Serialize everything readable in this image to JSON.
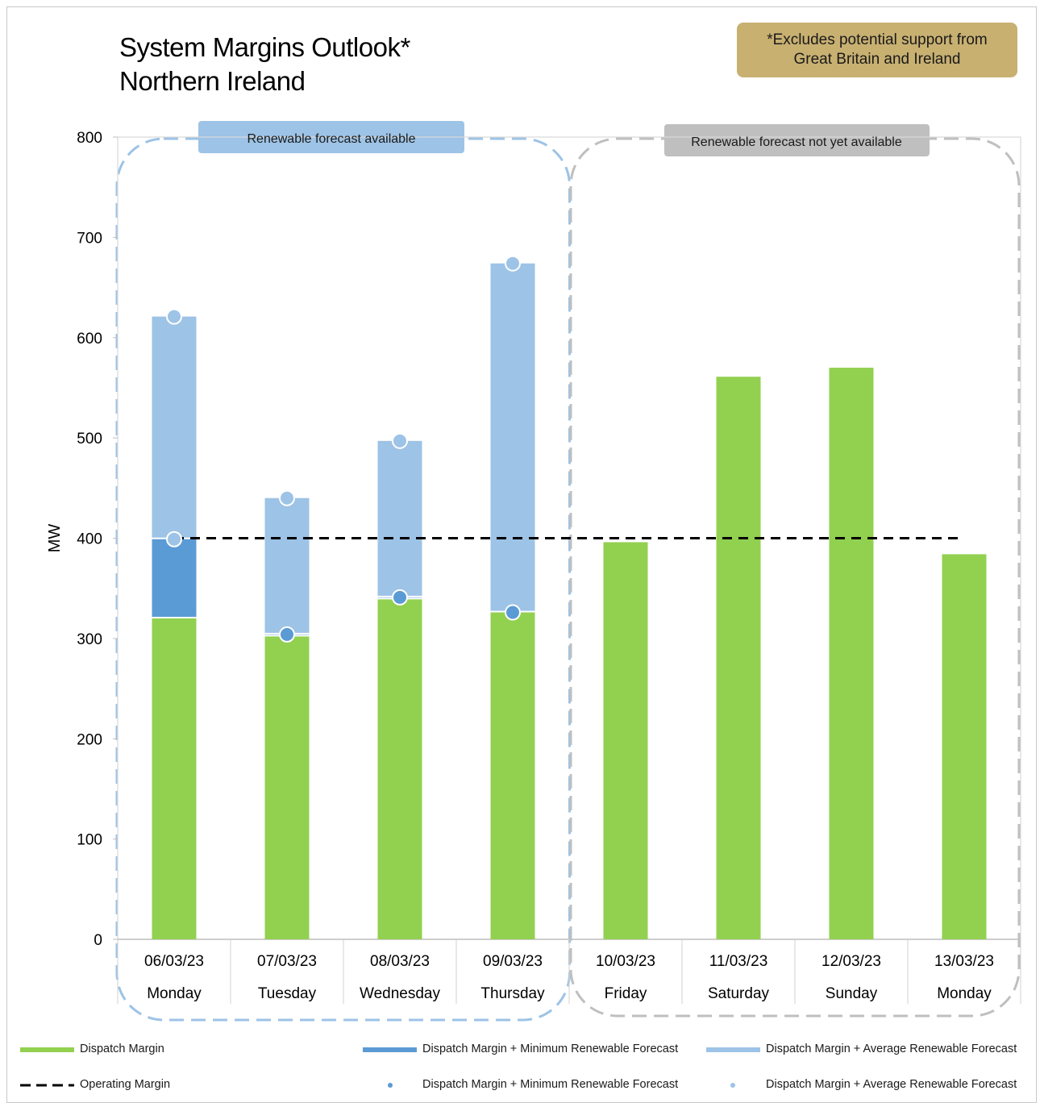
{
  "title_line1": "System Margins Outlook*",
  "title_line2": "Northern Ireland",
  "note_line1": "*Excludes potential support from",
  "note_line2": "Great Britain and Ireland",
  "region_labels": {
    "available": "Renewable forecast available",
    "not_available": "Renewable forecast not yet available"
  },
  "legend": {
    "dispatch_margin": "Dispatch Margin",
    "min_bar": "Dispatch Margin + Minimum Renewable Forecast",
    "avg_bar": "Dispatch Margin + Average Renewable Forecast",
    "operating_margin": "Operating Margin",
    "min_marker": "Dispatch Margin + Minimum Renewable Forecast",
    "avg_marker": "Dispatch Margin + Average Renewable Forecast"
  },
  "colors": {
    "dispatch": "#92d050",
    "min": "#5b9bd5",
    "avg": "#9dc3e6",
    "operating": "#000000",
    "note_bg": "#c8b071",
    "region_available": "#9dc3e6",
    "region_not_available": "#bfbfbf"
  },
  "chart_data": {
    "type": "bar",
    "ylabel": "MW",
    "ylim": [
      0,
      800
    ],
    "yticks": [
      0,
      100,
      200,
      300,
      400,
      500,
      600,
      700,
      800
    ],
    "categories": [
      {
        "date": "06/03/23",
        "day": "Monday"
      },
      {
        "date": "07/03/23",
        "day": "Tuesday"
      },
      {
        "date": "08/03/23",
        "day": "Wednesday"
      },
      {
        "date": "09/03/23",
        "day": "Thursday"
      },
      {
        "date": "10/03/23",
        "day": "Friday"
      },
      {
        "date": "11/03/23",
        "day": "Saturday"
      },
      {
        "date": "12/03/23",
        "day": "Sunday"
      },
      {
        "date": "13/03/23",
        "day": "Monday"
      }
    ],
    "series": [
      {
        "name": "Dispatch Margin",
        "values": [
          320,
          302,
          339,
          326,
          396,
          561,
          570,
          384
        ]
      },
      {
        "name": "Dispatch Margin + Minimum Renewable Forecast",
        "values": [
          399,
          304,
          341,
          326,
          null,
          null,
          null,
          null
        ]
      },
      {
        "name": "Dispatch Margin + Average Renewable Forecast",
        "values": [
          621,
          440,
          497,
          674,
          null,
          null,
          null,
          null
        ]
      }
    ],
    "operating_margin": 400,
    "renewable_forecast_days": 4
  }
}
